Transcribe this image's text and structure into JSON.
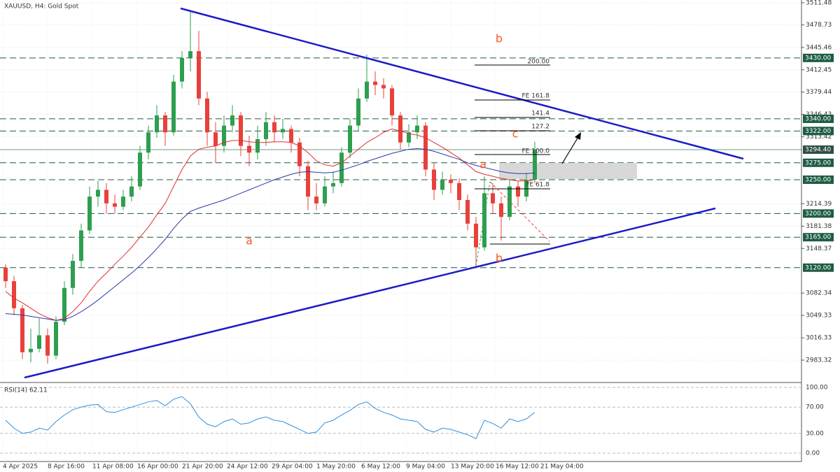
{
  "chart_data": {
    "type": "candlestick",
    "title": "XAUUSD, H4:  Gold Spot",
    "x_labels": [
      "4 Apr 2025",
      "8 Apr 16:00",
      "11 Apr 08:00",
      "16 Apr 00:00",
      "21 Apr 20:00",
      "24 Apr 12:00",
      "29 Apr 04:00",
      "1 May 20:00",
      "6 May 12:00",
      "9 May 04:00",
      "13 May 20:00",
      "16 May 12:00",
      "21 May 04:00"
    ],
    "open": [
      3120,
      3100,
      3060,
      2995,
      3000,
      3020,
      2990,
      3040,
      3090,
      3130,
      3175,
      3225,
      3235,
      3215,
      3210,
      3225,
      3240,
      3290,
      3320,
      3345,
      3320,
      3395,
      3430,
      3440,
      3370,
      3320,
      3300,
      3330,
      3345,
      3300,
      3290,
      3310,
      3335,
      3320,
      3325,
      3305,
      3270,
      3225,
      3215,
      3240,
      3245,
      3290,
      3330,
      3370,
      3395,
      3390,
      3385,
      3345,
      3305,
      3320,
      3330,
      3265,
      3235,
      3250,
      3245,
      3220,
      3185,
      3150,
      3230,
      3215,
      3195,
      3240,
      3225,
      3250
    ],
    "high": [
      3125,
      3108,
      3065,
      3030,
      3045,
      3030,
      3048,
      3100,
      3140,
      3185,
      3240,
      3248,
      3245,
      3228,
      3235,
      3255,
      3300,
      3330,
      3360,
      3350,
      3405,
      3440,
      3500,
      3470,
      3380,
      3335,
      3345,
      3360,
      3350,
      3315,
      3330,
      3350,
      3345,
      3340,
      3330,
      3312,
      3278,
      3245,
      3255,
      3262,
      3298,
      3340,
      3385,
      3435,
      3410,
      3400,
      3390,
      3350,
      3332,
      3345,
      3335,
      3275,
      3262,
      3258,
      3252,
      3228,
      3195,
      3255,
      3245,
      3225,
      3250,
      3248,
      3260,
      3306
    ],
    "low": [
      3090,
      3050,
      2985,
      2980,
      2995,
      2978,
      2985,
      3035,
      3080,
      3120,
      3170,
      3210,
      3200,
      3200,
      3205,
      3218,
      3235,
      3280,
      3312,
      3300,
      3315,
      3385,
      3410,
      3360,
      3300,
      3275,
      3290,
      3320,
      3285,
      3270,
      3280,
      3300,
      3305,
      3310,
      3290,
      3255,
      3205,
      3205,
      3210,
      3230,
      3240,
      3282,
      3322,
      3365,
      3375,
      3370,
      3330,
      3295,
      3298,
      3310,
      3255,
      3220,
      3228,
      3230,
      3205,
      3175,
      3120,
      3145,
      3200,
      3160,
      3190,
      3210,
      3218,
      3245
    ],
    "close": [
      3100,
      3060,
      2995,
      3000,
      3020,
      2990,
      3040,
      3090,
      3130,
      3175,
      3225,
      3235,
      3215,
      3210,
      3225,
      3240,
      3290,
      3320,
      3345,
      3320,
      3395,
      3430,
      3440,
      3370,
      3320,
      3300,
      3330,
      3345,
      3300,
      3290,
      3310,
      3335,
      3320,
      3325,
      3305,
      3270,
      3225,
      3215,
      3240,
      3245,
      3290,
      3330,
      3370,
      3395,
      3390,
      3385,
      3345,
      3305,
      3320,
      3330,
      3265,
      3235,
      3250,
      3245,
      3220,
      3185,
      3150,
      3230,
      3215,
      3195,
      3240,
      3225,
      3250,
      3294.4
    ],
    "up_color": "#2e9e4f",
    "down_color": "#e8403a",
    "series": [
      {
        "color": "#e03030",
        "values": [
          3085,
          3075,
          3068,
          3060,
          3052,
          3046,
          3042,
          3045,
          3055,
          3068,
          3085,
          3100,
          3112,
          3125,
          3137,
          3150,
          3165,
          3180,
          3198,
          3215,
          3240,
          3265,
          3285,
          3295,
          3298,
          3300,
          3305,
          3308,
          3308,
          3306,
          3305,
          3305,
          3306,
          3306,
          3305,
          3300,
          3290,
          3278,
          3272,
          3270,
          3275,
          3285,
          3295,
          3305,
          3312,
          3320,
          3325,
          3322,
          3318,
          3316,
          3312,
          3305,
          3298,
          3290,
          3282,
          3272,
          3262,
          3258,
          3255,
          3252,
          3250,
          3248,
          3248,
          3250
        ]
      },
      {
        "color": "#2a3aa8",
        "values": [
          3052,
          3051,
          3050,
          3048,
          3046,
          3044,
          3042,
          3043,
          3048,
          3055,
          3063,
          3072,
          3082,
          3092,
          3102,
          3112,
          3123,
          3135,
          3148,
          3162,
          3178,
          3192,
          3203,
          3208,
          3212,
          3216,
          3220,
          3225,
          3230,
          3235,
          3240,
          3245,
          3250,
          3254,
          3258,
          3261,
          3262,
          3261,
          3260,
          3261,
          3264,
          3268,
          3272,
          3277,
          3281,
          3285,
          3289,
          3292,
          3295,
          3296,
          3295,
          3292,
          3288,
          3284,
          3280,
          3275,
          3271,
          3268,
          3265,
          3262,
          3260,
          3259,
          3259,
          3260
        ]
      }
    ],
    "ylim": [
      2952.31,
      3515.61
    ],
    "yticks": [
      3511.48,
      3478.73,
      3445.46,
      3412.45,
      3379.44,
      3346.43,
      3313.42,
      3214.39,
      3181.38,
      3148.37,
      3082.34,
      3049.33,
      3016.33,
      2983.32
    ],
    "grid": true,
    "levels": [
      {
        "value": 3430,
        "label": "3430.00"
      },
      {
        "value": 3340,
        "label": "3340.00"
      },
      {
        "value": 3322,
        "label": "3322.00"
      },
      {
        "value": 3275,
        "label": "3275.00"
      },
      {
        "value": 3250,
        "label": "3250.00"
      },
      {
        "value": 3200,
        "label": "3200.00"
      },
      {
        "value": 3165,
        "label": "3165.00"
      },
      {
        "value": 3120,
        "label": "3120.00"
      }
    ],
    "current_price": {
      "value": 3294.4,
      "label": "3294.40"
    },
    "level_color": "#1d5c43",
    "annotations": [
      "b",
      "a",
      "c",
      "a",
      "b"
    ],
    "fib_labels": [
      "200.00",
      "FE 161.8",
      "141.4",
      "127.2",
      "FE 100.0",
      "FE 61.8"
    ],
    "rsi": {
      "label": "RSI(14) 62.11",
      "color": "#2f8fdd",
      "values": [
        50,
        38,
        30,
        32,
        38,
        35,
        48,
        58,
        66,
        70,
        73,
        74,
        63,
        62,
        66,
        70,
        74,
        78,
        80,
        72,
        82,
        86,
        75,
        55,
        44,
        40,
        48,
        52,
        44,
        46,
        52,
        55,
        50,
        48,
        42,
        36,
        30,
        32,
        46,
        50,
        58,
        65,
        74,
        78,
        68,
        62,
        58,
        52,
        50,
        48,
        36,
        32,
        38,
        36,
        32,
        28,
        22,
        50,
        45,
        38,
        52,
        48,
        52,
        62.11
      ],
      "ylim": [
        -12.8,
        106.4
      ],
      "yticks": [
        {
          "value": 100,
          "label": "100.00"
        },
        {
          "value": 70,
          "label": "70.00"
        },
        {
          "value": 30,
          "label": "30.00"
        },
        {
          "value": 0,
          "label": "0.00"
        }
      ]
    }
  }
}
